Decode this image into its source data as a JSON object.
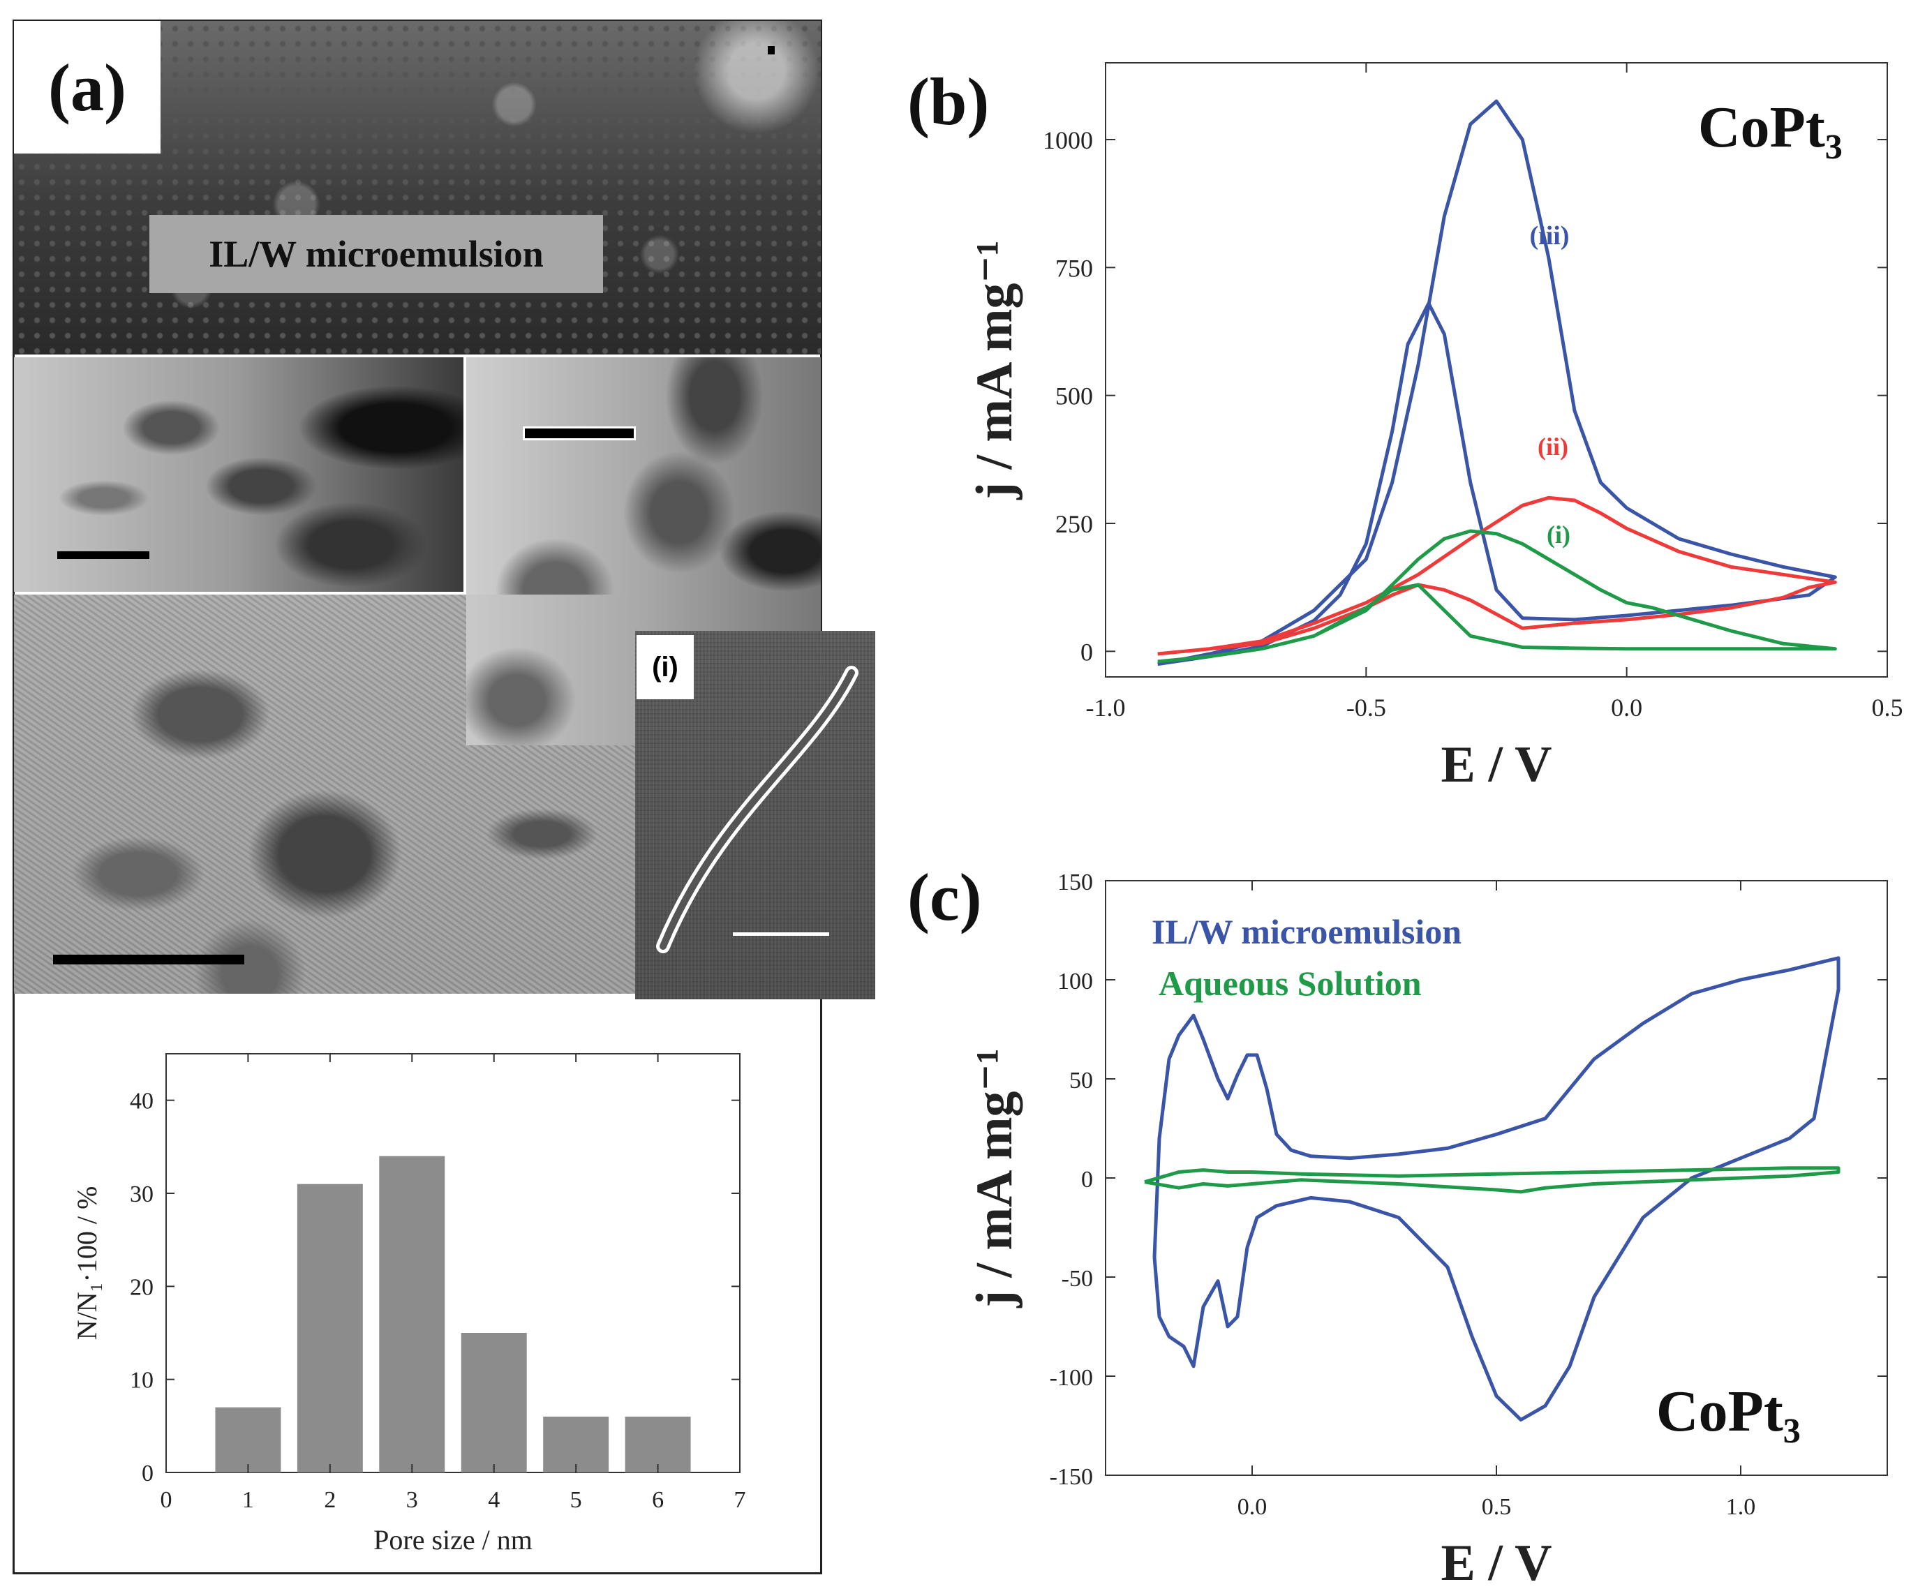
{
  "panels": {
    "a": {
      "letter": "(a)",
      "overlay_label": "IL/W microemulsion",
      "inset_label": "(i)"
    },
    "b": {
      "letter": "(b)"
    },
    "c": {
      "letter": "(c)"
    }
  },
  "colors": {
    "blue": "#3a54a8",
    "red": "#ef3a3a",
    "green": "#1f9a48",
    "bar": "#8c8c8c"
  },
  "chart_data": [
    {
      "id": "pore-histogram",
      "type": "bar",
      "x": [
        1,
        2,
        3,
        4,
        5,
        6
      ],
      "values": [
        7,
        31,
        34,
        15,
        6,
        6
      ],
      "xlabel": "Pore size / nm",
      "ylabel": "N/N₁·100  /  %",
      "xlim": [
        0,
        7
      ],
      "ylim": [
        0,
        45
      ],
      "xticks": [
        "0",
        "1",
        "2",
        "3",
        "4",
        "5",
        "6",
        "7"
      ],
      "yticks": [
        "0",
        "10",
        "20",
        "30",
        "40"
      ]
    },
    {
      "id": "cv-b",
      "type": "line",
      "title": "CoPt₃",
      "xlabel": "E / V",
      "ylabel": "j / mA mg⁻¹",
      "xlim": [
        -1.0,
        0.5
      ],
      "ylim": [
        -50,
        1150
      ],
      "xticks": [
        "-1.0",
        "-0.5",
        "0.0",
        "0.5"
      ],
      "yticks": [
        "0",
        "250",
        "500",
        "750",
        "1000"
      ],
      "series": [
        {
          "name": "(iii)",
          "color": "blue",
          "x": [
            -0.9,
            -0.8,
            -0.7,
            -0.6,
            -0.5,
            -0.45,
            -0.4,
            -0.35,
            -0.3,
            -0.25,
            -0.2,
            -0.15,
            -0.1,
            -0.05,
            0.0,
            0.05,
            0.1,
            0.2,
            0.3,
            0.4,
            0.35,
            0.2,
            0.1,
            0.0,
            -0.1,
            -0.2,
            -0.25,
            -0.3,
            -0.35,
            -0.38,
            -0.42,
            -0.45,
            -0.5,
            -0.55,
            -0.6,
            -0.7,
            -0.8,
            -0.9
          ],
          "y": [
            -25,
            -5,
            20,
            80,
            180,
            330,
            560,
            850,
            1030,
            1075,
            1000,
            770,
            470,
            330,
            280,
            250,
            220,
            190,
            165,
            145,
            110,
            90,
            80,
            70,
            62,
            65,
            120,
            330,
            620,
            680,
            600,
            430,
            210,
            110,
            60,
            10,
            -10,
            -25
          ]
        },
        {
          "name": "(ii)",
          "color": "red",
          "x": [
            -0.9,
            -0.8,
            -0.7,
            -0.6,
            -0.5,
            -0.4,
            -0.3,
            -0.2,
            -0.15,
            -0.1,
            -0.05,
            0.0,
            0.1,
            0.2,
            0.3,
            0.4,
            0.35,
            0.3,
            0.2,
            0.1,
            0.0,
            -0.1,
            -0.2,
            -0.3,
            -0.35,
            -0.4,
            -0.45,
            -0.5,
            -0.6,
            -0.7,
            -0.8,
            -0.9
          ],
          "y": [
            -5,
            5,
            20,
            55,
            95,
            150,
            220,
            285,
            300,
            295,
            270,
            240,
            195,
            165,
            150,
            135,
            125,
            105,
            85,
            72,
            62,
            55,
            45,
            100,
            120,
            130,
            110,
            85,
            45,
            15,
            5,
            -5
          ]
        },
        {
          "name": "(i)",
          "color": "green",
          "x": [
            -0.9,
            -0.8,
            -0.7,
            -0.6,
            -0.5,
            -0.45,
            -0.4,
            -0.35,
            -0.3,
            -0.25,
            -0.2,
            -0.15,
            -0.1,
            -0.05,
            0.0,
            0.05,
            0.1,
            0.2,
            0.3,
            0.4,
            0.3,
            0.2,
            0.1,
            0.0,
            -0.1,
            -0.2,
            -0.3,
            -0.35,
            -0.4,
            -0.45,
            -0.5,
            -0.6,
            -0.7,
            -0.8,
            -0.9
          ],
          "y": [
            -20,
            -10,
            5,
            30,
            80,
            130,
            180,
            220,
            235,
            230,
            210,
            180,
            150,
            120,
            95,
            85,
            70,
            40,
            15,
            5,
            5,
            5,
            5,
            5,
            6,
            8,
            30,
            80,
            130,
            120,
            85,
            30,
            5,
            -10,
            -20
          ]
        }
      ]
    },
    {
      "id": "cv-c",
      "type": "line",
      "title": "CoPt₃",
      "xlabel": "E / V",
      "ylabel": "j / mA mg⁻¹",
      "xlim": [
        -0.3,
        1.3
      ],
      "ylim": [
        -150,
        150
      ],
      "xticks": [
        "0.0",
        "0.5",
        "1.0"
      ],
      "yticks": [
        "-150",
        "-100",
        "-50",
        "0",
        "50",
        "100",
        "150"
      ],
      "legend": [
        "IL/W microemulsion",
        "Aqueous Solution"
      ],
      "series": [
        {
          "name": "IL/W microemulsion",
          "color": "blue",
          "x": [
            -0.2,
            -0.19,
            -0.17,
            -0.15,
            -0.12,
            -0.1,
            -0.07,
            -0.05,
            -0.03,
            -0.01,
            0.01,
            0.03,
            0.05,
            0.08,
            0.12,
            0.2,
            0.3,
            0.4,
            0.5,
            0.6,
            0.65,
            0.7,
            0.8,
            0.9,
            1.0,
            1.1,
            1.15,
            1.2,
            1.2,
            1.15,
            1.1,
            1.0,
            0.9,
            0.8,
            0.7,
            0.65,
            0.6,
            0.55,
            0.5,
            0.45,
            0.4,
            0.3,
            0.2,
            0.12,
            0.05,
            0.01,
            -0.01,
            -0.03,
            -0.05,
            -0.07,
            -0.1,
            -0.12,
            -0.14,
            -0.17,
            -0.19,
            -0.2
          ],
          "y": [
            -40,
            20,
            60,
            72,
            82,
            70,
            50,
            40,
            52,
            62,
            62,
            45,
            22,
            14,
            11,
            10,
            12,
            15,
            22,
            30,
            45,
            60,
            78,
            93,
            100,
            105,
            108,
            111,
            95,
            30,
            20,
            10,
            0,
            -20,
            -60,
            -95,
            -115,
            -122,
            -110,
            -80,
            -45,
            -20,
            -12,
            -10,
            -14,
            -20,
            -35,
            -70,
            -75,
            -52,
            -65,
            -95,
            -85,
            -80,
            -70,
            -40
          ]
        },
        {
          "name": "Aqueous Solution",
          "color": "green",
          "x": [
            -0.22,
            -0.15,
            -0.1,
            -0.05,
            0.0,
            0.1,
            0.3,
            0.5,
            0.7,
            0.9,
            1.1,
            1.2,
            1.2,
            1.1,
            0.9,
            0.7,
            0.6,
            0.55,
            0.5,
            0.3,
            0.1,
            0.0,
            -0.05,
            -0.1,
            -0.15,
            -0.22
          ],
          "y": [
            -2,
            3,
            4,
            3,
            3,
            2,
            1,
            2,
            3,
            4,
            5,
            5,
            3,
            1,
            -1,
            -3,
            -5,
            -7,
            -6,
            -3,
            -1,
            -3,
            -4,
            -3,
            -5,
            -2
          ]
        }
      ]
    }
  ]
}
